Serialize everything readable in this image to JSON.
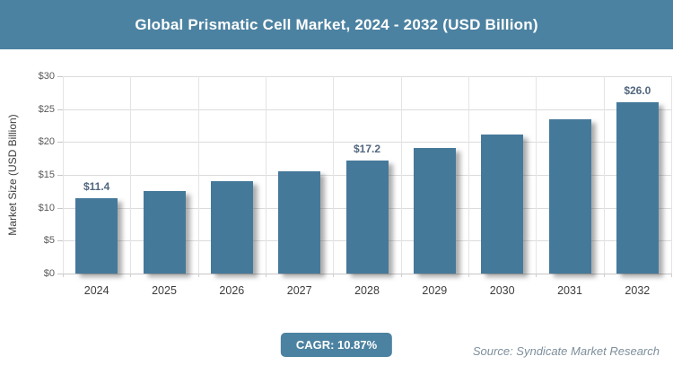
{
  "header": {
    "title": "Global Prismatic Cell Market, 2024 - 2032 (USD Billion)"
  },
  "chart_data": {
    "type": "bar",
    "title": "Global Prismatic Cell Market, 2024 - 2032 (USD Billion)",
    "categories": [
      "2024",
      "2025",
      "2026",
      "2027",
      "2028",
      "2029",
      "2030",
      "2031",
      "2032"
    ],
    "values": [
      11.4,
      12.6,
      14.0,
      15.5,
      17.2,
      19.1,
      21.2,
      23.5,
      26.0
    ],
    "point_labels": {
      "0": "$11.4",
      "4": "$17.2",
      "8": "$26.0"
    },
    "xlabel": "",
    "ylabel": "Market Size (USD Billion)",
    "ylim": [
      0,
      30
    ],
    "ytick_step": 5,
    "yticks": [
      "$0",
      "$5",
      "$10",
      "$15",
      "$20",
      "$25",
      "$30"
    ],
    "grid": true,
    "legend": false
  },
  "footer": {
    "cagr_label": "CAGR: 10.87%",
    "source": "Source: Syndicate Market Research"
  },
  "colors": {
    "header_bg": "#4c82a1",
    "bar": "#45799a",
    "badge_bg": "#4c82a1",
    "value_label": "#52677e",
    "source_text": "#7e8f9c",
    "axis_text": "#595959",
    "category_text": "#3c3c3c",
    "gridline": "#dcdcdc"
  }
}
